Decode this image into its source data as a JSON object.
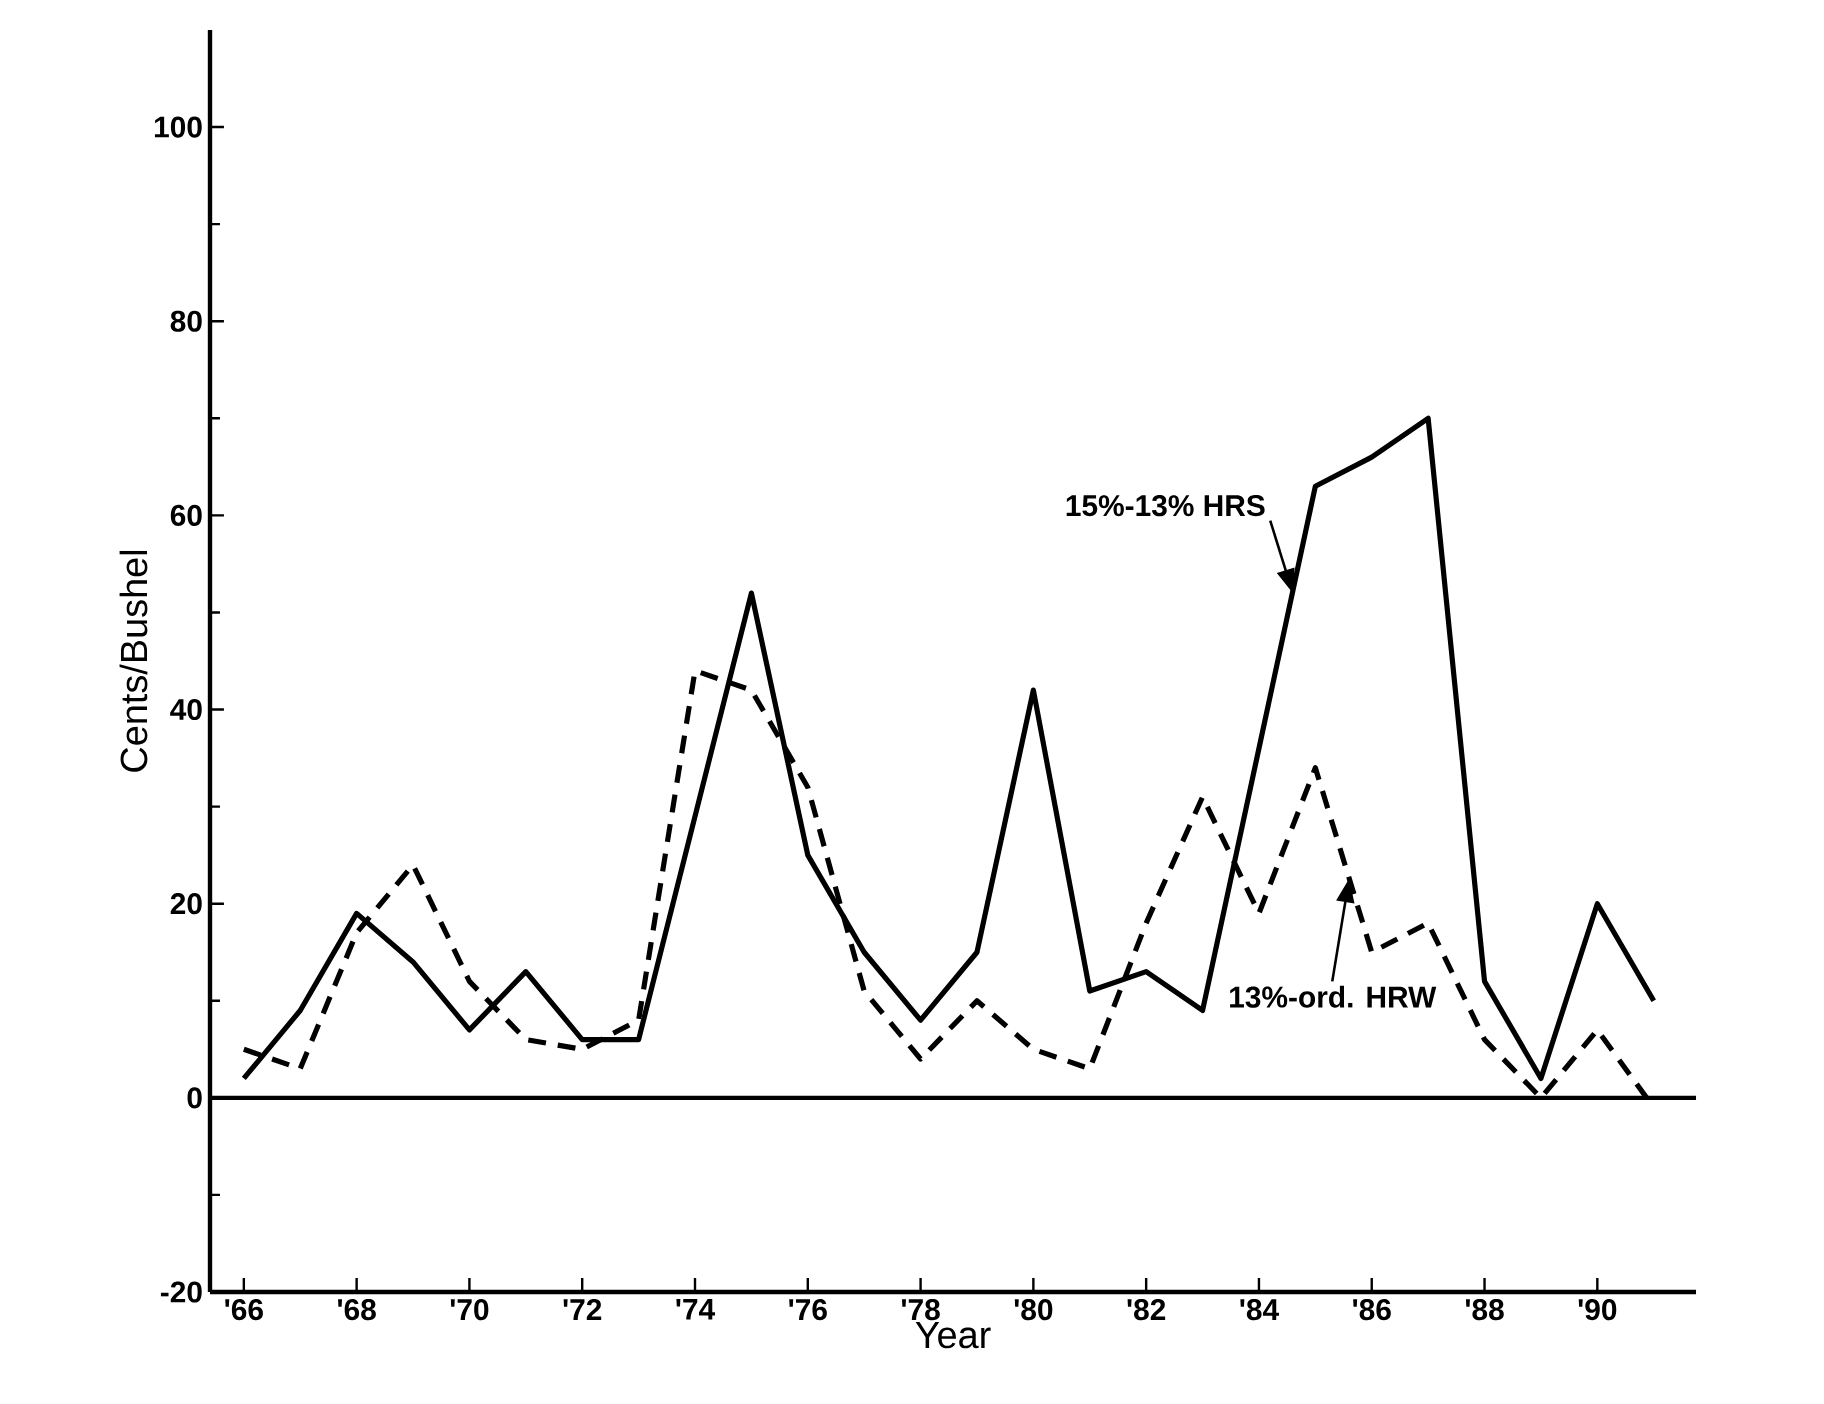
{
  "chart_data": {
    "type": "line",
    "xlabel": "Year",
    "ylabel": "Cents/Bushel",
    "x": [
      1966,
      1967,
      1968,
      1969,
      1970,
      1971,
      1972,
      1973,
      1974,
      1975,
      1976,
      1977,
      1978,
      1979,
      1980,
      1981,
      1982,
      1983,
      1984,
      1985,
      1986,
      1987,
      1988,
      1989,
      1990,
      1991
    ],
    "series": [
      {
        "name": "15%-13% HRS",
        "color": "#000000",
        "line_style": "solid",
        "values": [
          2,
          9,
          19,
          14,
          7,
          13,
          6,
          6,
          29,
          52,
          25,
          15,
          8,
          15,
          42,
          11,
          13,
          9,
          36,
          63,
          66,
          70,
          12,
          2,
          20,
          10
        ]
      },
      {
        "name": "13%-ord. HRW",
        "color": "#000000",
        "line_style": "dashed",
        "values": [
          5,
          3,
          17,
          24,
          12,
          6,
          5,
          8,
          44,
          42,
          32,
          11,
          4,
          10,
          5,
          3,
          18,
          31,
          19,
          34,
          15,
          18,
          6,
          0,
          7,
          -1
        ]
      }
    ],
    "xlim": [
      1965.4,
      1991.75
    ],
    "ylim": [
      -20,
      110
    ],
    "xticks": [
      {
        "value": 1966,
        "label": "'66"
      },
      {
        "value": 1968,
        "label": "'68"
      },
      {
        "value": 1970,
        "label": "'70"
      },
      {
        "value": 1972,
        "label": "'72"
      },
      {
        "value": 1974,
        "label": "'74"
      },
      {
        "value": 1976,
        "label": "'76"
      },
      {
        "value": 1978,
        "label": "'78"
      },
      {
        "value": 1980,
        "label": "'80"
      },
      {
        "value": 1982,
        "label": "'82"
      },
      {
        "value": 1984,
        "label": "'84"
      },
      {
        "value": 1986,
        "label": "'86"
      },
      {
        "value": 1988,
        "label": "'88"
      },
      {
        "value": 1990,
        "label": "'90"
      }
    ],
    "yticks": [
      -20,
      0,
      20,
      40,
      60,
      80,
      100
    ],
    "ref_lines": [
      {
        "axis": "y",
        "value": 0
      }
    ],
    "grid": false,
    "legend": false,
    "marker": "none"
  }
}
